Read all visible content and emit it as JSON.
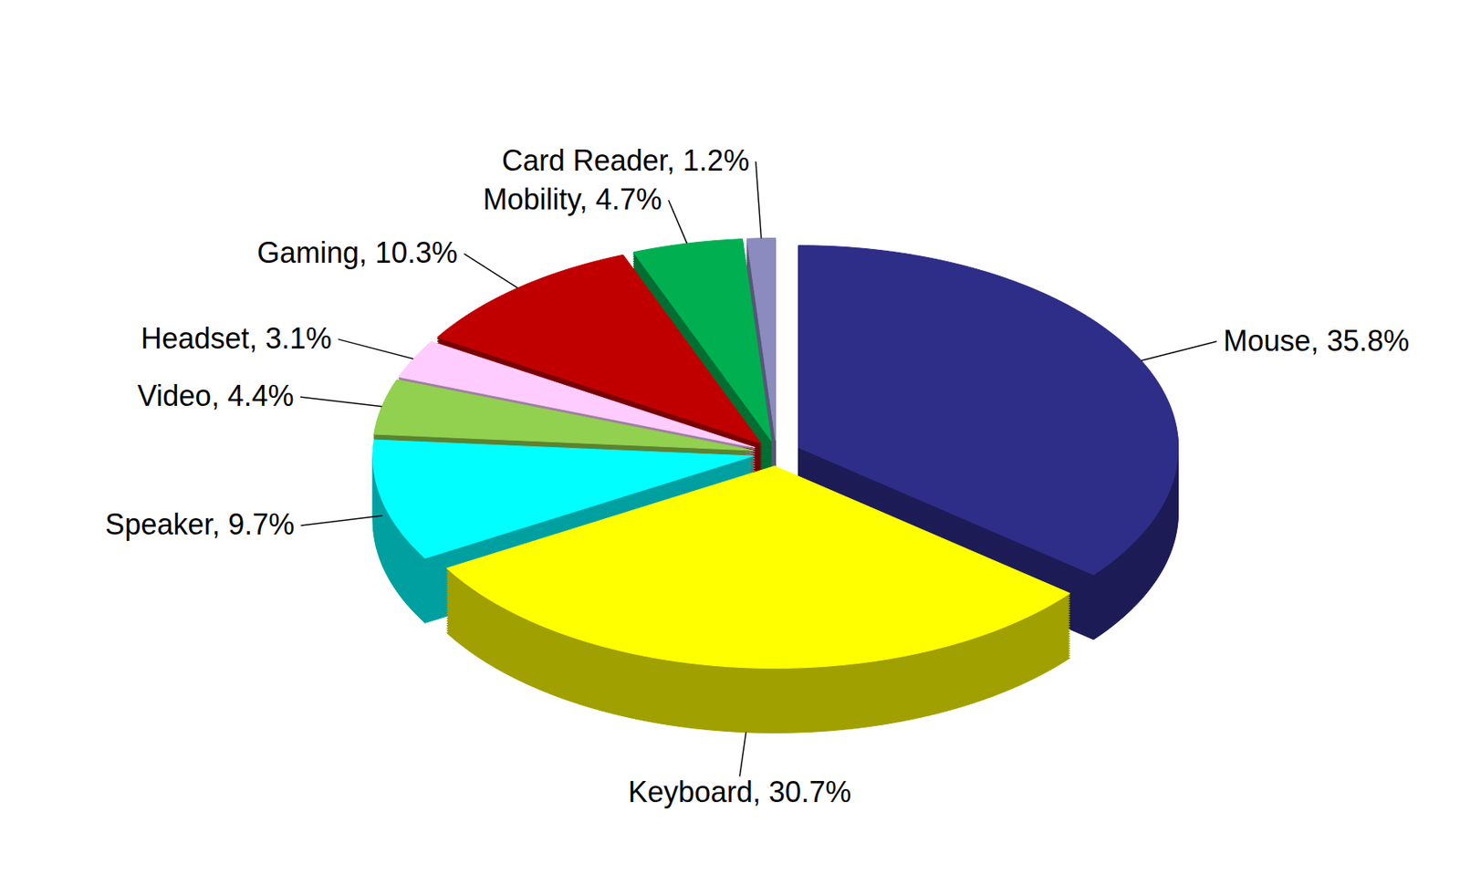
{
  "chart_data": {
    "type": "pie",
    "categories": [
      "Mouse",
      "Keyboard",
      "Speaker",
      "Video",
      "Headset",
      "Gaming",
      "Mobility",
      "Card Reader"
    ],
    "values": [
      35.8,
      30.7,
      9.7,
      4.4,
      3.1,
      10.3,
      4.7,
      1.2
    ],
    "value_labels": [
      "Mouse, 35.8%",
      "Keyboard, 30.7%",
      "Speaker, 9.7%",
      "Video, 4.4%",
      "Headset, 3.1%",
      "Gaming, 10.3%",
      "Mobility, 4.7%",
      "Card Reader, 1.2%"
    ],
    "colors": [
      "#2e2d88",
      "#ffff00",
      "#00ffff",
      "#92d050",
      "#ffccff",
      "#c00000",
      "#00b050",
      "#8b8bc0"
    ],
    "data_labels": true
  }
}
